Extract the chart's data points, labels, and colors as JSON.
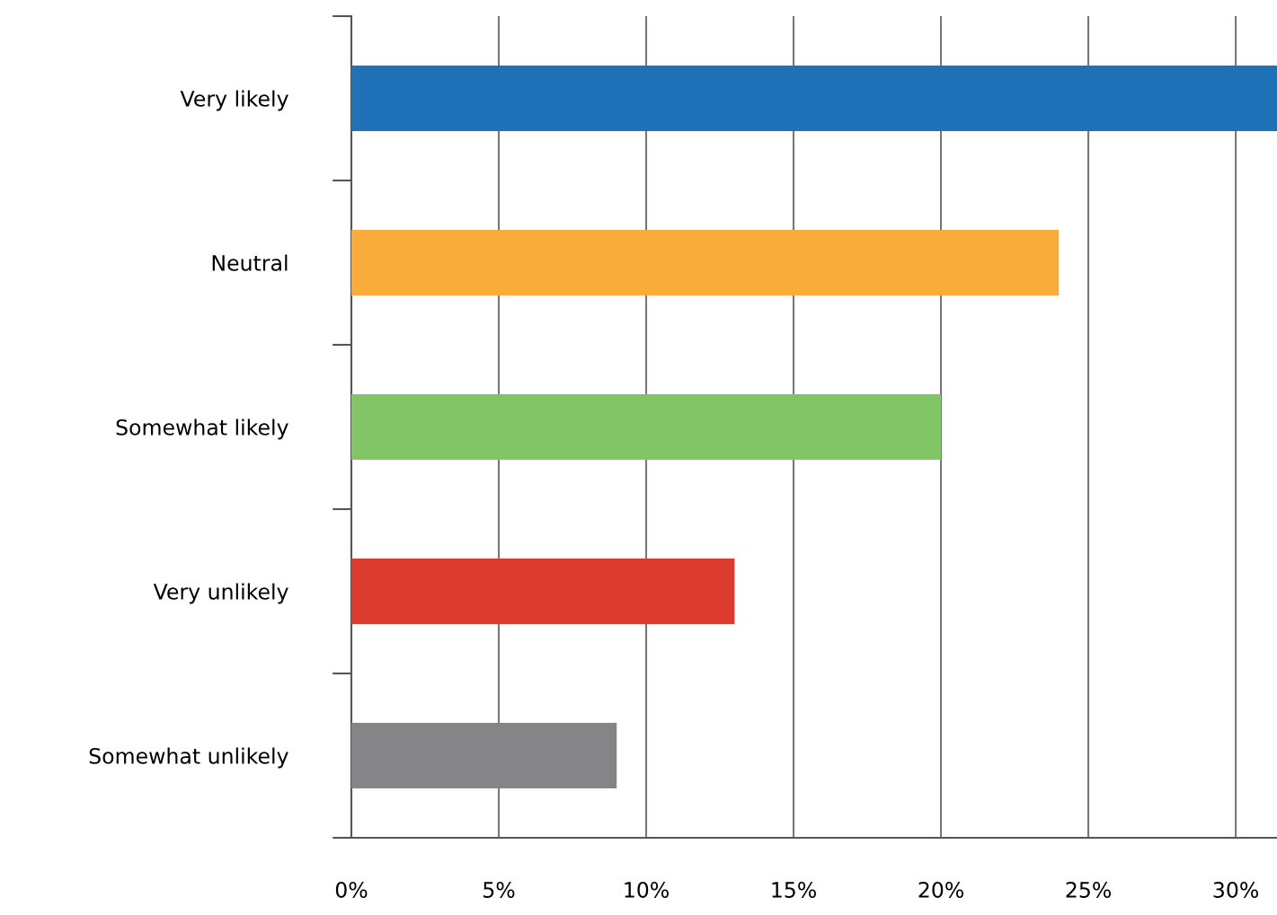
{
  "chart_data": {
    "type": "bar",
    "orientation": "horizontal",
    "categories": [
      "Very likely",
      "Neutral",
      "Somewhat likely",
      "Very unlikely",
      "Somewhat unlikely"
    ],
    "values": [
      31.4,
      24,
      20,
      13,
      9
    ],
    "colors": [
      "#1f72b8",
      "#f9ab3c",
      "#82c566",
      "#dc3a2c",
      "#858587"
    ],
    "xlim": [
      0,
      31.4
    ],
    "xticks": [
      {
        "value": 0,
        "label": "0%"
      },
      {
        "value": 5,
        "label": "5%"
      },
      {
        "value": 10,
        "label": "10%"
      },
      {
        "value": 15,
        "label": "15%"
      },
      {
        "value": 20,
        "label": "20%"
      },
      {
        "value": 25,
        "label": "25%"
      },
      {
        "value": 30,
        "label": "30%"
      }
    ],
    "grid": "x",
    "legend": false
  }
}
